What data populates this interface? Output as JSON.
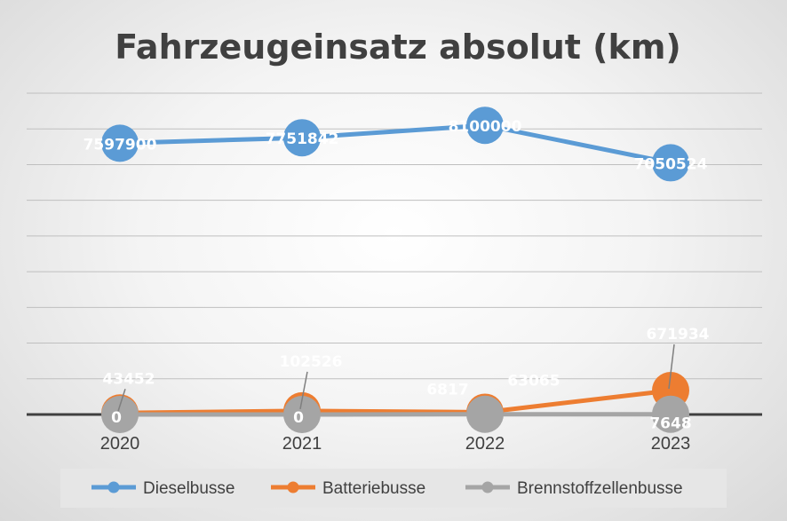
{
  "chart_data": {
    "type": "line",
    "title": "Fahrzeugeinsatz absolut (km)",
    "categories": [
      "2020",
      "2021",
      "2022",
      "2023"
    ],
    "ylim": [
      0,
      9000000
    ],
    "grid": true,
    "legend_position": "bottom",
    "series": [
      {
        "name": "Dieselbusse",
        "color": "#5B9BD5",
        "values": [
          7597900,
          7751842,
          8100000,
          7050524
        ],
        "labels": [
          "7597900",
          "7751842",
          "8100000",
          "7050524"
        ]
      },
      {
        "name": "Batteriebusse",
        "color": "#ED7D31",
        "values": [
          43452,
          102526,
          63065,
          671934
        ],
        "labels": [
          "43452",
          "102526",
          "63065",
          "671934"
        ]
      },
      {
        "name": "Brennstoffzellenbusse",
        "color": "#A5A5A5",
        "values": [
          0,
          0,
          6817,
          7648
        ],
        "labels": [
          "0",
          "0",
          "6817",
          "7648"
        ]
      }
    ]
  }
}
